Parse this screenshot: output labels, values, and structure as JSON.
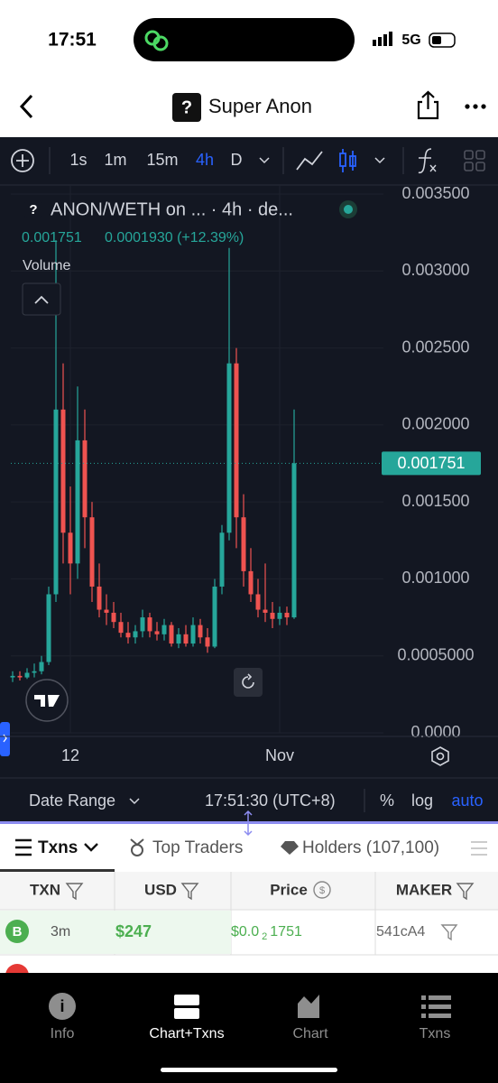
{
  "status_bar": {
    "time": "17:51",
    "network": "5G"
  },
  "header": {
    "icon": "?",
    "title": "Super Anon"
  },
  "toolbar": {
    "intervals": [
      "1s",
      "1m",
      "15m",
      "4h",
      "D"
    ]
  },
  "chart_data": {
    "type": "candlestick",
    "legend_icon": "?",
    "title": "ANON/WETH on ... · 4h · de...",
    "last": "0.001751",
    "change": "0.0001930 (+12.39%)",
    "indicator": "Volume",
    "categories": [
      null,
      null,
      null,
      null,
      null,
      null,
      null,
      null,
      "12",
      null,
      null,
      null,
      null,
      null,
      null,
      null,
      null,
      null,
      null,
      null,
      null,
      null,
      null,
      null,
      null,
      null,
      null,
      null,
      null,
      null,
      null,
      null,
      null,
      null,
      null,
      null,
      null,
      "Nov",
      null,
      null
    ],
    "open": [
      0.00036,
      0.00037,
      0.00036,
      0.00039,
      0.0004,
      0.00046,
      0.0009,
      0.0021,
      0.0013,
      0.0011,
      0.0019,
      0.0014,
      0.00095,
      0.0008,
      0.00078,
      0.00072,
      0.00065,
      0.00062,
      0.00066,
      0.00075,
      0.00066,
      0.00064,
      0.0007,
      0.00058,
      0.00064,
      0.00058,
      0.0007,
      0.00062,
      0.00056,
      0.00095,
      0.0013,
      0.0024,
      0.0014,
      0.00105,
      0.0009,
      0.0008,
      0.00078,
      0.00074,
      0.00078,
      0.00075
    ],
    "high": [
      0.0004,
      0.0004,
      0.00042,
      0.00045,
      0.0005,
      0.00095,
      0.0032,
      0.0024,
      0.0016,
      0.00225,
      0.0021,
      0.0015,
      0.0011,
      0.0009,
      0.00085,
      0.00078,
      0.00072,
      0.0007,
      0.0008,
      0.00078,
      0.00072,
      0.00074,
      0.00072,
      0.00068,
      0.0007,
      0.00075,
      0.00074,
      0.00068,
      0.001,
      0.00135,
      0.00315,
      0.0025,
      0.00155,
      0.0012,
      0.001,
      0.0011,
      0.00085,
      0.00082,
      0.00082,
      0.0021
    ],
    "low": [
      0.00033,
      0.00034,
      0.00035,
      0.00036,
      0.00038,
      0.00044,
      0.00085,
      0.0011,
      0.0009,
      0.001,
      0.0012,
      0.00085,
      0.00075,
      0.0007,
      0.00068,
      0.00062,
      0.00058,
      0.00058,
      0.00062,
      0.00062,
      0.0006,
      0.0006,
      0.00056,
      0.00055,
      0.00056,
      0.00056,
      0.00058,
      0.00052,
      0.00055,
      0.0009,
      0.00125,
      0.0012,
      0.00095,
      0.00085,
      0.00075,
      0.00072,
      0.00068,
      0.0007,
      0.0007,
      0.00074
    ],
    "close": [
      0.00037,
      0.00036,
      0.00039,
      0.0004,
      0.00046,
      0.0009,
      0.0021,
      0.0013,
      0.0011,
      0.0019,
      0.0014,
      0.00095,
      0.0008,
      0.00078,
      0.00072,
      0.00065,
      0.00062,
      0.00066,
      0.00075,
      0.00066,
      0.00064,
      0.0007,
      0.00058,
      0.00064,
      0.00058,
      0.0007,
      0.00062,
      0.00056,
      0.00095,
      0.0013,
      0.0024,
      0.0014,
      0.00105,
      0.0009,
      0.0008,
      0.00078,
      0.00074,
      0.00078,
      0.00075,
      0.001751
    ],
    "up_color": "#26a69a",
    "down_color": "#ef5350",
    "ylim": [
      0,
      0.0035
    ],
    "yticks": [
      {
        "value": 0,
        "label": "0.0000"
      },
      {
        "value": 0.0005,
        "label": "0.0005000"
      },
      {
        "value": 0.001,
        "label": "0.001000"
      },
      {
        "value": 0.0015,
        "label": "0.001500"
      },
      {
        "value": 0.002,
        "label": "0.002000"
      },
      {
        "value": 0.0025,
        "label": "0.002500"
      },
      {
        "value": 0.003,
        "label": "0.003000"
      },
      {
        "value": 0.0035,
        "label": "0.003500"
      }
    ],
    "grid": true,
    "price_line": {
      "value": 0.001751,
      "label": "0.001751"
    }
  },
  "chart_footer": {
    "date_range": "Date Range",
    "time": "17:51:30 (UTC+8)",
    "options": [
      "%",
      "log",
      "auto"
    ]
  },
  "tabs": [
    "Txns",
    "Top Traders",
    "Holders (107,100)"
  ],
  "table": {
    "headers": [
      "TXN",
      "USD",
      "Price",
      "MAKER"
    ],
    "rows": [
      [
        "B",
        "3m",
        "$247",
        {
          "prefix": "$0.0",
          "sub": "2",
          "rest": "1751"
        },
        "541cA4"
      ]
    ]
  },
  "bottom_nav": [
    "Info",
    "Chart+Txns",
    "Chart",
    "Txns"
  ]
}
